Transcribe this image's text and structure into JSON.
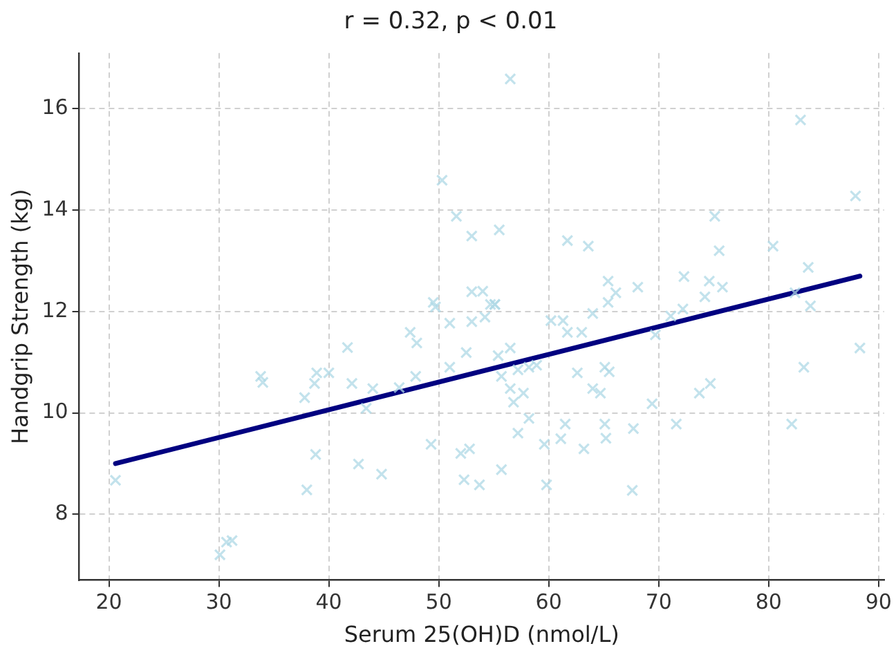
{
  "chart_data": {
    "type": "scatter",
    "title": "r = 0.32, p < 0.01",
    "xlabel": "Serum 25(OH)D (nmol/L)",
    "ylabel": "Handgrip Strength (kg)",
    "xlim": [
      17.3,
      90.5
    ],
    "xticks": [
      20,
      30,
      40,
      50,
      60,
      70,
      80,
      90
    ],
    "ylim": [
      6.7,
      17.1
    ],
    "yticks": [
      8,
      10,
      12,
      14,
      16
    ],
    "grid": true,
    "legend": false,
    "marker": "cross",
    "series": [
      {
        "type": "scatter",
        "color": "#add8e6",
        "x": [
          20.6,
          30.1,
          30.7,
          31.2,
          33.8,
          34.0,
          37.8,
          38.0,
          38.8,
          38.7,
          38.9,
          40.0,
          41.7,
          42.1,
          42.7,
          43.4,
          44.0,
          44.8,
          46.4,
          47.4,
          48.0,
          47.9,
          49.3,
          49.7,
          51.0,
          51.0,
          52.5,
          53.0,
          52.0,
          52.8,
          52.3,
          53.7,
          50.3,
          51.6,
          53.0,
          49.5,
          53.0,
          56.5,
          82.9,
          87.9,
          55.5,
          61.7,
          63.6,
          75.1,
          75.5,
          80.4,
          83.6,
          83.8,
          82.4,
          65.4,
          66.1,
          65.4,
          68.1,
          72.3,
          74.6,
          75.8,
          74.2,
          54.0,
          55.1,
          54.7,
          54.2,
          60.2,
          61.3,
          64.0,
          71.1,
          72.2,
          55.1,
          55.4,
          56.5,
          55.7,
          56.5,
          56.8,
          57.7,
          57.2,
          58.2,
          58.9,
          58.2,
          57.2,
          55.7,
          59.6,
          59.8,
          61.7,
          63.0,
          62.6,
          64.0,
          64.7,
          65.1,
          65.5,
          61.5,
          61.1,
          63.2,
          65.1,
          65.2,
          67.7,
          67.6,
          69.4,
          69.7,
          71.6,
          73.7,
          74.7,
          82.1,
          83.2,
          88.3
        ],
        "values": [
          8.67,
          7.2,
          7.45,
          7.48,
          10.72,
          10.6,
          10.3,
          8.48,
          9.18,
          10.58,
          10.79,
          10.79,
          11.29,
          10.58,
          8.99,
          10.09,
          10.48,
          8.79,
          10.5,
          11.59,
          11.38,
          10.72,
          9.38,
          12.09,
          11.77,
          10.9,
          11.19,
          11.8,
          9.2,
          9.29,
          8.68,
          8.58,
          14.59,
          13.88,
          13.49,
          12.18,
          12.39,
          16.59,
          15.78,
          14.28,
          13.61,
          13.4,
          13.29,
          13.88,
          13.2,
          13.29,
          12.87,
          12.11,
          12.37,
          12.6,
          12.37,
          12.18,
          12.48,
          12.69,
          12.6,
          12.48,
          12.29,
          12.4,
          12.14,
          12.14,
          11.89,
          11.82,
          11.82,
          11.96,
          11.91,
          12.05,
          12.14,
          11.13,
          11.28,
          10.72,
          10.48,
          10.21,
          10.39,
          10.85,
          10.9,
          10.94,
          9.89,
          9.6,
          8.88,
          9.38,
          8.58,
          11.59,
          11.59,
          10.79,
          10.48,
          10.39,
          10.9,
          10.81,
          9.78,
          9.49,
          9.29,
          9.78,
          9.5,
          9.69,
          8.47,
          10.18,
          11.54,
          9.78,
          10.39,
          10.58,
          9.78,
          10.9,
          11.28
        ]
      },
      {
        "type": "line",
        "color": "#000080",
        "marker": "none",
        "x": [
          20.6,
          88.3
        ],
        "values": [
          9.0,
          12.7
        ]
      }
    ]
  }
}
